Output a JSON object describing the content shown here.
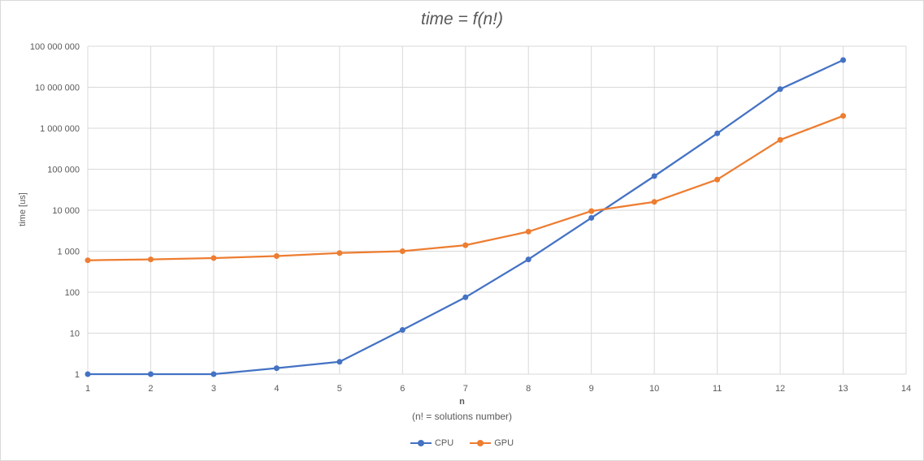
{
  "chart_data": {
    "type": "line",
    "title": "time = f(n!)",
    "xlabel": "n",
    "xlabel_sub": "(n! = solutions number)",
    "ylabel": "time [us]",
    "y_scale": "log",
    "xlim": [
      1,
      14
    ],
    "ylim": [
      1,
      100000000
    ],
    "x_ticks": [
      "1",
      "2",
      "3",
      "4",
      "5",
      "6",
      "7",
      "8",
      "9",
      "10",
      "11",
      "12",
      "13",
      "14"
    ],
    "y_ticks": [
      {
        "value": 1,
        "label": "1"
      },
      {
        "value": 10,
        "label": "10"
      },
      {
        "value": 100,
        "label": "100"
      },
      {
        "value": 1000,
        "label": "1 000"
      },
      {
        "value": 10000,
        "label": "10 000"
      },
      {
        "value": 100000,
        "label": "100 000"
      },
      {
        "value": 1000000,
        "label": "1 000 000"
      },
      {
        "value": 10000000,
        "label": "10 000 000"
      },
      {
        "value": 100000000,
        "label": "100 000 000"
      }
    ],
    "grid": true,
    "legend_position": "bottom",
    "series": [
      {
        "name": "CPU",
        "color": "#4472c4",
        "x": [
          1,
          2,
          3,
          4,
          5,
          6,
          7,
          8,
          9,
          10,
          11,
          12,
          13
        ],
        "y": [
          1,
          1,
          1,
          1.4,
          2,
          12,
          75,
          630,
          6500,
          68000,
          750000,
          9000000,
          46000000
        ]
      },
      {
        "name": "GPU",
        "color": "#ed7d31",
        "x": [
          1,
          2,
          3,
          4,
          5,
          6,
          7,
          8,
          9,
          10,
          11,
          12,
          13
        ],
        "y": [
          600,
          630,
          680,
          760,
          900,
          1000,
          1400,
          3000,
          9500,
          16000,
          56000,
          520000,
          2000000
        ]
      }
    ]
  }
}
